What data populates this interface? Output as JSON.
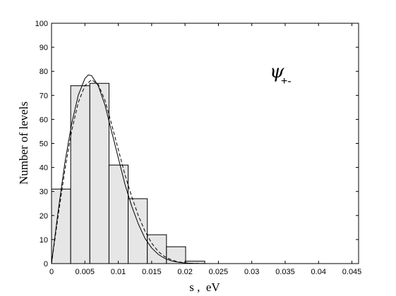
{
  "chart_data": {
    "type": "bar",
    "title": "",
    "xlabel": "s ,  eV",
    "ylabel": "Number of levels",
    "xlim": [
      0,
      0.046
    ],
    "ylim": [
      0,
      100
    ],
    "x_ticks": [
      0,
      0.005,
      0.01,
      0.015,
      0.02,
      0.025,
      0.03,
      0.035,
      0.04,
      0.045
    ],
    "x_tick_labels": [
      "0",
      "0.005",
      "0.01",
      "0.015",
      "0.02",
      "0.025",
      "0.03",
      "0.035",
      "0.04",
      "0.045"
    ],
    "y_ticks": [
      0,
      10,
      20,
      30,
      40,
      50,
      60,
      70,
      80,
      90,
      100
    ],
    "y_tick_labels": [
      "0",
      "10",
      "20",
      "30",
      "40",
      "50",
      "60",
      "70",
      "80",
      "90",
      "100"
    ],
    "bin_width": 0.00287,
    "bin_edges": [
      0,
      0.00287,
      0.00574,
      0.00861,
      0.01148,
      0.01435,
      0.01722,
      0.02009,
      0.02296
    ],
    "values": [
      31,
      74,
      75,
      41,
      27,
      12,
      7,
      1
    ],
    "bar_fill": "#e6e6e6",
    "bar_stroke": "#000000",
    "series": [
      {
        "style": "solid",
        "points": [
          [
            0,
            0
          ],
          [
            0.001,
            22
          ],
          [
            0.002,
            42
          ],
          [
            0.003,
            58
          ],
          [
            0.004,
            70
          ],
          [
            0.005,
            77
          ],
          [
            0.0055,
            78.5
          ],
          [
            0.006,
            78.2
          ],
          [
            0.007,
            74
          ],
          [
            0.008,
            66
          ],
          [
            0.009,
            55
          ],
          [
            0.01,
            44
          ],
          [
            0.011,
            33
          ],
          [
            0.012,
            24
          ],
          [
            0.013,
            16.5
          ],
          [
            0.014,
            10.5
          ],
          [
            0.015,
            6.5
          ],
          [
            0.016,
            3.8
          ],
          [
            0.017,
            2.1
          ],
          [
            0.018,
            1.1
          ],
          [
            0.019,
            0.55
          ],
          [
            0.02,
            0.25
          ],
          [
            0.021,
            0.1
          ],
          [
            0.022,
            0.04
          ],
          [
            0.024,
            0
          ],
          [
            0.046,
            0
          ]
        ]
      },
      {
        "style": "dashed",
        "points": [
          [
            0,
            0
          ],
          [
            0.001,
            20
          ],
          [
            0.002,
            39
          ],
          [
            0.003,
            55
          ],
          [
            0.004,
            67
          ],
          [
            0.005,
            74
          ],
          [
            0.006,
            76.5
          ],
          [
            0.007,
            74.5
          ],
          [
            0.008,
            68
          ],
          [
            0.009,
            58
          ],
          [
            0.01,
            47.5
          ],
          [
            0.011,
            37
          ],
          [
            0.012,
            28
          ],
          [
            0.013,
            20
          ],
          [
            0.014,
            13.5
          ],
          [
            0.015,
            8.5
          ],
          [
            0.016,
            5
          ],
          [
            0.017,
            2.8
          ],
          [
            0.018,
            1.5
          ],
          [
            0.019,
            0.7
          ],
          [
            0.02,
            0.3
          ],
          [
            0.021,
            0.12
          ],
          [
            0.023,
            0.02
          ],
          [
            0.025,
            0
          ],
          [
            0.046,
            0
          ]
        ]
      }
    ],
    "annotation": {
      "main": "ψ",
      "sub": "+-"
    },
    "grid": false
  }
}
